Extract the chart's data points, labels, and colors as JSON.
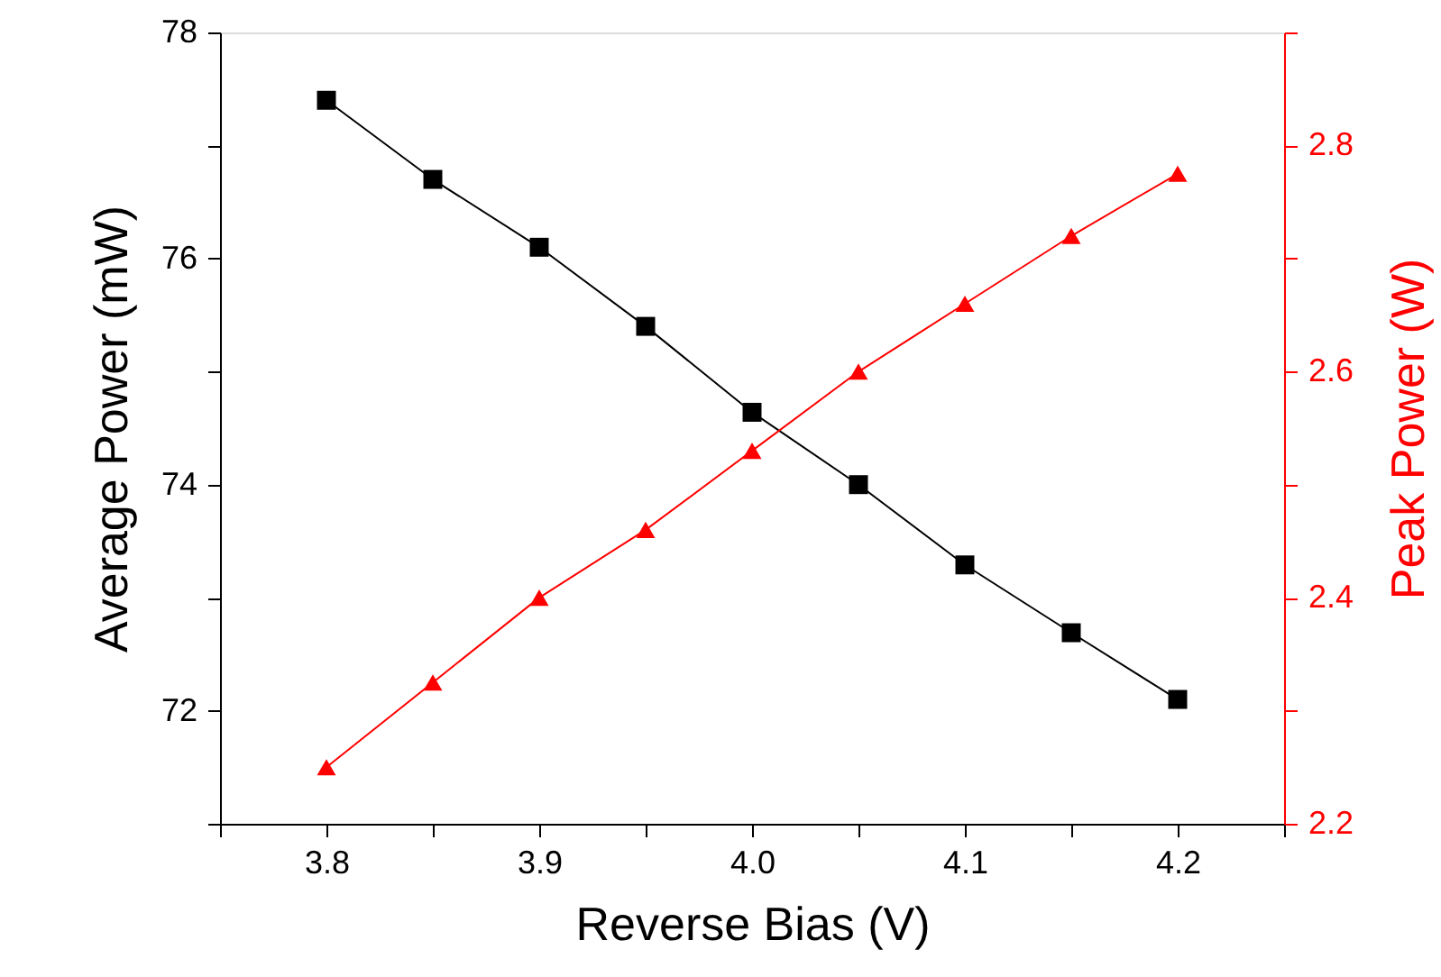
{
  "chart_data": {
    "type": "line",
    "xlabel": "Reverse Bias (V)",
    "ylabel": "Average Power (mW)",
    "y2label": "Peak Power (W)",
    "x": [
      3.8,
      3.85,
      3.9,
      3.95,
      4.0,
      4.05,
      4.1,
      4.15,
      4.2
    ],
    "series": [
      {
        "color": "#000000",
        "marker": "square",
        "values": [
          77.4,
          76.7,
          76.1,
          75.4,
          74.64,
          74.0,
          73.29,
          72.69,
          72.1
        ]
      },
      {
        "color": "#ff0000",
        "marker": "triangle",
        "axis": "y2",
        "values": [
          2.25,
          2.325,
          2.4,
          2.46,
          2.53,
          2.6,
          2.66,
          2.72,
          2.775
        ]
      }
    ],
    "xlim": [
      3.75,
      4.25
    ],
    "xticks": [
      {
        "value": 3.75,
        "label": null
      },
      3.8,
      {
        "value": 3.85,
        "label": null
      },
      3.9,
      {
        "value": 3.95,
        "label": null
      },
      {
        "value": 4.0,
        "label": "4.0"
      },
      {
        "value": 4.05,
        "label": null
      },
      4.1,
      {
        "value": 4.15,
        "label": null
      },
      4.2,
      {
        "value": 4.25,
        "label": null
      }
    ],
    "ylim": [
      71,
      78
    ],
    "yticks": [
      {
        "value": 71,
        "label": null
      },
      72,
      {
        "value": 73,
        "label": null
      },
      74,
      {
        "value": 75,
        "label": null
      },
      76,
      {
        "value": 77,
        "label": null
      },
      78
    ],
    "y2lim": [
      2.2,
      2.9
    ],
    "y2ticks": [
      2.2,
      {
        "value": 2.3,
        "label": null
      },
      2.4,
      {
        "value": 2.5,
        "label": null
      },
      2.6,
      {
        "value": 2.7,
        "label": null
      },
      2.8,
      {
        "value": 2.9,
        "label": null
      }
    ],
    "grid": false,
    "line_style": "solid"
  }
}
